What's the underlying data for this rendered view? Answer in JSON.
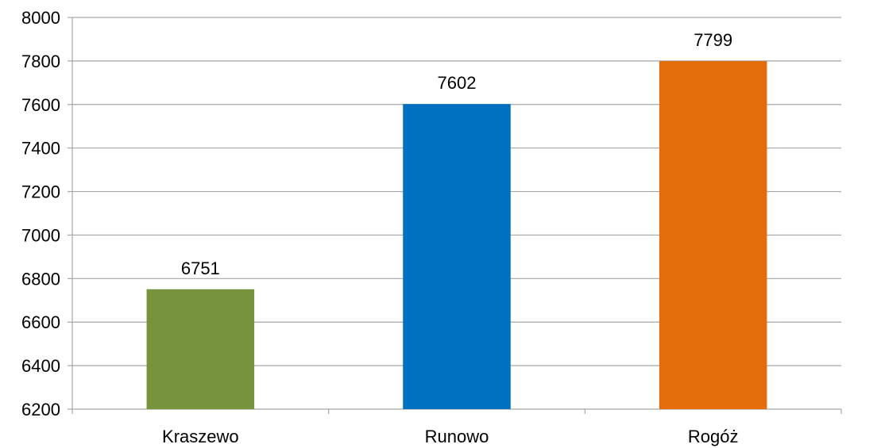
{
  "chart_data": {
    "type": "bar",
    "categories": [
      "Kraszewo",
      "Runowo",
      "Rogóż"
    ],
    "values": [
      6751,
      7602,
      7799
    ],
    "data_labels": [
      "6751",
      "7602",
      "7799"
    ],
    "colors": [
      "#77933C",
      "#0070C0",
      "#E46C0A"
    ],
    "title": "",
    "xlabel": "",
    "ylabel": "",
    "ylim": [
      6200,
      8000
    ],
    "yticks": [
      6200,
      6400,
      6600,
      6800,
      7000,
      7200,
      7400,
      7600,
      7800,
      8000
    ],
    "ytick_labels": [
      "6200",
      "6400",
      "6600",
      "6800",
      "7000",
      "7200",
      "7400",
      "7600",
      "7800",
      "8000"
    ],
    "grid": true,
    "legend": "none"
  }
}
